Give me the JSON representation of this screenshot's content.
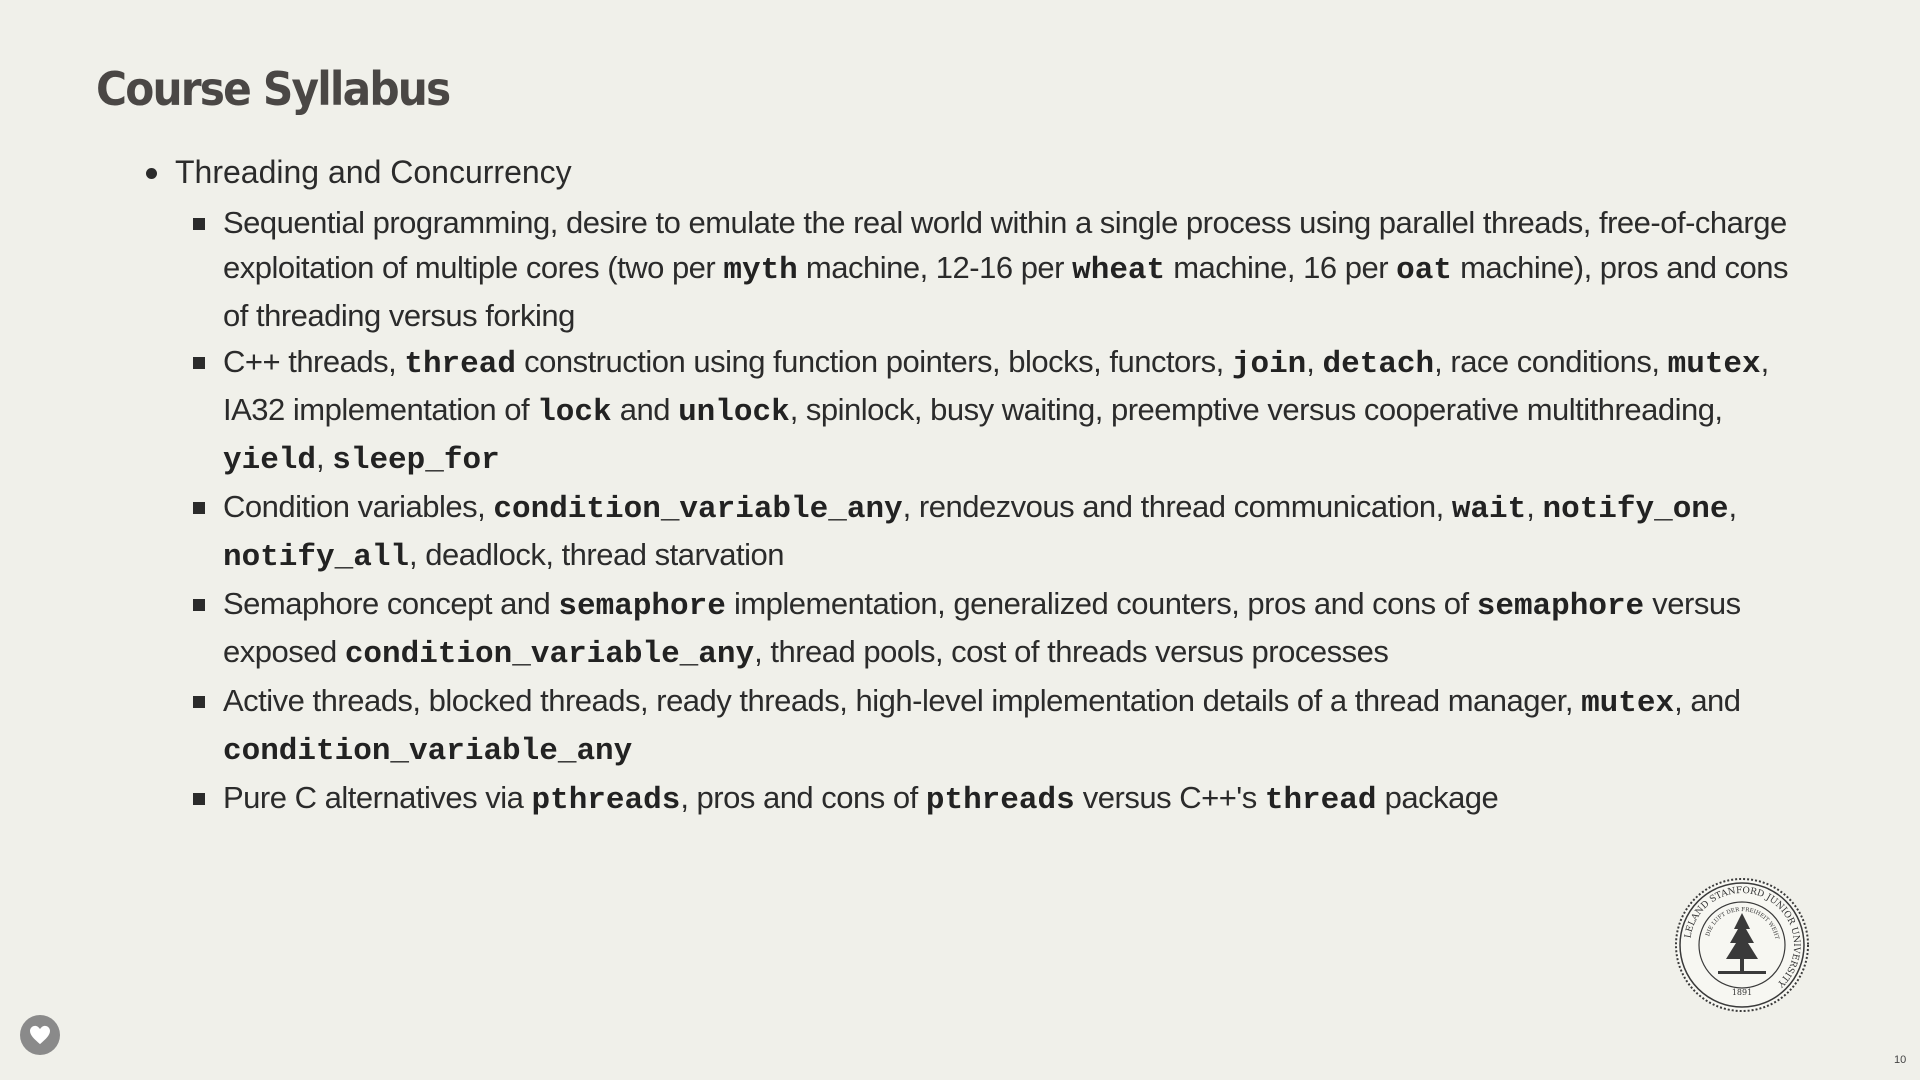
{
  "title": "Course Syllabus",
  "topic": "Threading and Concurrency",
  "items": [
    [
      {
        "t": "Sequential programming, desire to emulate the real world within a single process using parallel threads, free-of-charge exploitation of multiple cores (two per "
      },
      {
        "t": "myth",
        "code": true
      },
      {
        "t": " machine, 12-16 per "
      },
      {
        "t": "wheat",
        "code": true
      },
      {
        "t": " machine, 16 per "
      },
      {
        "t": "oat",
        "code": true
      },
      {
        "t": " machine), pros and cons of threading versus forking"
      }
    ],
    [
      {
        "t": "C++ threads, "
      },
      {
        "t": "thread",
        "code": true
      },
      {
        "t": " construction using function pointers, blocks, functors, "
      },
      {
        "t": "join",
        "code": true
      },
      {
        "t": ", "
      },
      {
        "t": "detach",
        "code": true
      },
      {
        "t": ", race conditions, "
      },
      {
        "t": "mutex",
        "code": true
      },
      {
        "t": ", IA32 implementation of "
      },
      {
        "t": "lock",
        "code": true
      },
      {
        "t": " and "
      },
      {
        "t": "unlock",
        "code": true
      },
      {
        "t": ", spinlock, busy waiting, preemptive versus cooperative multithreading, "
      },
      {
        "t": "yield",
        "code": true
      },
      {
        "t": ", "
      },
      {
        "t": "sleep_for",
        "code": true
      }
    ],
    [
      {
        "t": "Condition variables, "
      },
      {
        "t": "condition_variable_any",
        "code": true
      },
      {
        "t": ", rendezvous and thread communication, "
      },
      {
        "t": "wait",
        "code": true
      },
      {
        "t": ", "
      },
      {
        "t": "notify_one",
        "code": true
      },
      {
        "t": ", "
      },
      {
        "t": "notify_all",
        "code": true
      },
      {
        "t": ", deadlock, thread starvation"
      }
    ],
    [
      {
        "t": "Semaphore concept and "
      },
      {
        "t": "semaphore",
        "code": true
      },
      {
        "t": " implementation, generalized counters, pros and cons of "
      },
      {
        "t": "semaphore",
        "code": true
      },
      {
        "t": " versus exposed "
      },
      {
        "t": "condition_variable_any",
        "code": true
      },
      {
        "t": ", thread pools, cost of threads versus processes"
      }
    ],
    [
      {
        "t": "Active threads, blocked threads, ready threads, high-level implementation details of a thread manager, "
      },
      {
        "t": "mutex",
        "code": true
      },
      {
        "t": ", and "
      },
      {
        "t": "condition_variable_any",
        "code": true
      }
    ],
    [
      {
        "t": "Pure C alternatives via "
      },
      {
        "t": "pthreads",
        "code": true
      },
      {
        "t": ", pros and cons of "
      },
      {
        "t": "pthreads",
        "code": true
      },
      {
        "t": " versus C++'s "
      },
      {
        "t": "thread",
        "code": true
      },
      {
        "t": " package"
      }
    ]
  ],
  "seal": {
    "ring_text": "LELAND STANFORD JUNIOR UNIVERSITY",
    "inner_text": "DIE LUFT DER FREIHEIT WEHT",
    "year": "1891"
  },
  "page_number": "10",
  "colors": {
    "background": "#f0f0ea",
    "title": "#4a4745",
    "text": "#2b2b2b"
  }
}
